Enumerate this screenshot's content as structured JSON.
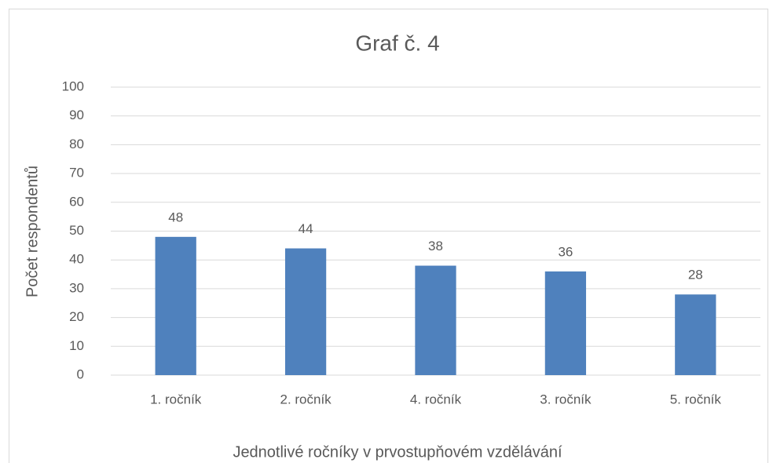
{
  "chart_data": {
    "type": "bar",
    "title": "Graf č. 4",
    "x_label": "Jednotlivé ročníky v prvostupňovém vzdělávání",
    "y_label": "Počet respondentů",
    "categories": [
      "1. ročník",
      "2. ročník",
      "4. ročník",
      "3. ročník",
      "5. ročník"
    ],
    "values": [
      48,
      44,
      38,
      36,
      28
    ],
    "color": "#4f81bd",
    "ylim": [
      0,
      100
    ],
    "yticks": [
      0,
      10,
      20,
      30,
      40,
      50,
      60,
      70,
      80,
      90,
      100
    ],
    "grid": true
  }
}
